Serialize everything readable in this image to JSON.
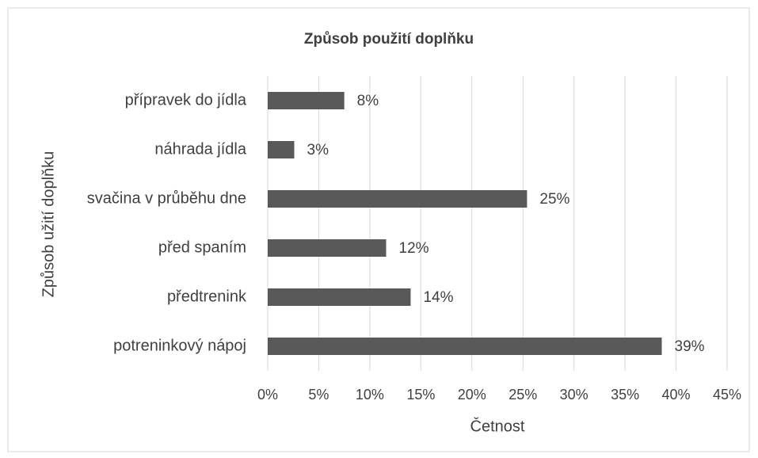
{
  "chart_data": {
    "type": "bar",
    "orientation": "horizontal",
    "title": "Způsob použití doplňku",
    "x_label": "Četnost",
    "y_label": "Způsob užití doplňku",
    "categories": [
      "přípravek do jídla",
      "náhrada jídla",
      "svačina v průběhu dne",
      "před spaním",
      "předtrenink",
      "potreninkový nápoj"
    ],
    "values": [
      7.5,
      2.6,
      25.4,
      11.6,
      14.0,
      38.6
    ],
    "value_labels": [
      "8%",
      "3%",
      "25%",
      "12%",
      "14%",
      "39%"
    ],
    "color": "#595959",
    "xlim": [
      0,
      45
    ],
    "xticks": [
      {
        "value": 0,
        "label": "0%"
      },
      {
        "value": 5,
        "label": "5%"
      },
      {
        "value": 10,
        "label": "10%"
      },
      {
        "value": 15,
        "label": "15%"
      },
      {
        "value": 20,
        "label": "20%"
      },
      {
        "value": 25,
        "label": "25%"
      },
      {
        "value": 30,
        "label": "30%"
      },
      {
        "value": 35,
        "label": "35%"
      },
      {
        "value": 40,
        "label": "40%"
      },
      {
        "value": 45,
        "label": "45%"
      }
    ],
    "grid": true
  }
}
